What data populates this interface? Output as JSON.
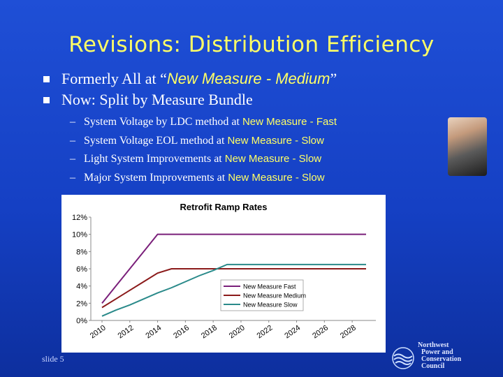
{
  "slide": {
    "title": "Revisions: Distribution Efficiency",
    "bullets": [
      {
        "prefix": "Formerly All at “",
        "highlight": "New Measure - Medium",
        "suffix": "”"
      },
      {
        "text": "Now:  Split by Measure Bundle"
      }
    ],
    "sub_bullets": [
      {
        "dash": "–",
        "text": "System Voltage by LDC method at ",
        "highlight": "New Measure - Fast"
      },
      {
        "dash": "–",
        "text": "System Voltage EOL method at ",
        "highlight": "New Measure - Slow"
      },
      {
        "dash": "–",
        "text": "Light System Improvements at ",
        "highlight": "New Measure - Slow"
      },
      {
        "dash": "–",
        "text": "Major System Improvements at ",
        "highlight": "New Measure - Slow"
      }
    ],
    "slide_number": "slide 5",
    "logo_text": "Northwest\n  Power and\n  Conservation\n  Council",
    "colors": {
      "title": "#ffff66",
      "background": "#1a47cf"
    }
  },
  "chart_data": {
    "type": "line",
    "title": "Retrofit Ramp Rates",
    "x": [
      2010,
      2011,
      2012,
      2013,
      2014,
      2015,
      2016,
      2017,
      2018,
      2019,
      2020,
      2021,
      2022,
      2023,
      2024,
      2025,
      2026,
      2027,
      2028,
      2029
    ],
    "x_tick_labels": [
      "2010",
      "2012",
      "2014",
      "2016",
      "2018",
      "2020",
      "2022",
      "2024",
      "2026",
      "2028"
    ],
    "y_tick_labels": [
      "0%",
      "2%",
      "4%",
      "6%",
      "8%",
      "10%",
      "12%"
    ],
    "ylim": [
      0,
      12
    ],
    "grid": false,
    "legend_position": "right",
    "series": [
      {
        "name": "New Measure Fast",
        "color": "#7a1f7a",
        "values": [
          2,
          4,
          6,
          8,
          10,
          10,
          10,
          10,
          10,
          10,
          10,
          10,
          10,
          10,
          10,
          10,
          10,
          10,
          10,
          10
        ]
      },
      {
        "name": "New Measure Medium",
        "color": "#8b1a1a",
        "values": [
          1.5,
          2.5,
          3.5,
          4.5,
          5.5,
          6,
          6,
          6,
          6,
          6,
          6,
          6,
          6,
          6,
          6,
          6,
          6,
          6,
          6,
          6
        ]
      },
      {
        "name": "New Measure Slow",
        "color": "#2a8a8a",
        "values": [
          0.5,
          1.2,
          1.8,
          2.5,
          3.2,
          3.8,
          4.5,
          5.2,
          5.8,
          6.5,
          6.5,
          6.5,
          6.5,
          6.5,
          6.5,
          6.5,
          6.5,
          6.5,
          6.5,
          6.5
        ]
      }
    ]
  }
}
